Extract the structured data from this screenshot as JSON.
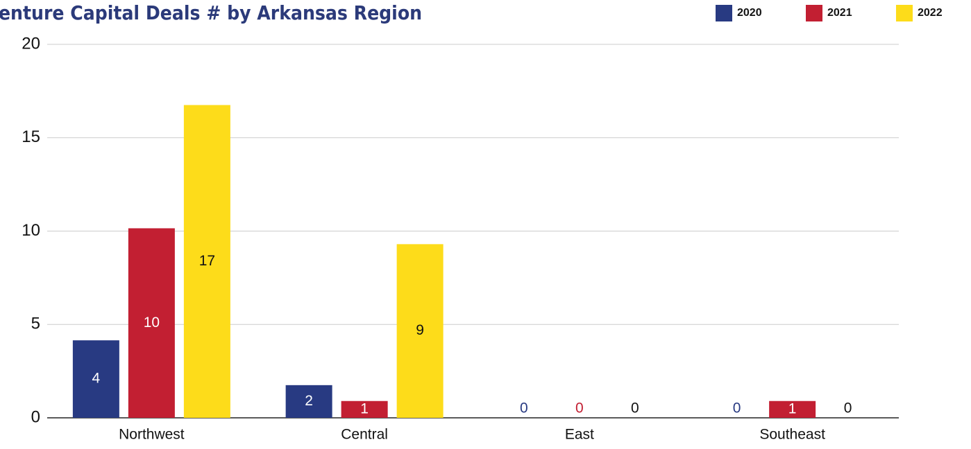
{
  "chart_data": {
    "type": "bar",
    "title": "Venture Capital Deals # by Arkansas Region",
    "categories": [
      "Northwest",
      "Central",
      "East",
      "Southeast"
    ],
    "series": [
      {
        "name": "2020",
        "color": "#283a82",
        "values": [
          4.15,
          1.75,
          0,
          0
        ],
        "value_labels": [
          "4",
          "2",
          "0",
          "0"
        ]
      },
      {
        "name": "2021",
        "color": "#c21f32",
        "values": [
          10.15,
          0.9,
          0,
          0.9
        ],
        "value_labels": [
          "10",
          "1",
          "0",
          "1"
        ]
      },
      {
        "name": "2022",
        "color": "#fddc1a",
        "values": [
          16.75,
          9.3,
          0,
          0
        ],
        "value_labels": [
          "17",
          "9",
          "0",
          "0"
        ]
      }
    ],
    "ylim": [
      0,
      20
    ],
    "yticks": [
      0,
      5,
      10,
      15,
      20
    ],
    "grid": true,
    "legend": "top-right"
  }
}
